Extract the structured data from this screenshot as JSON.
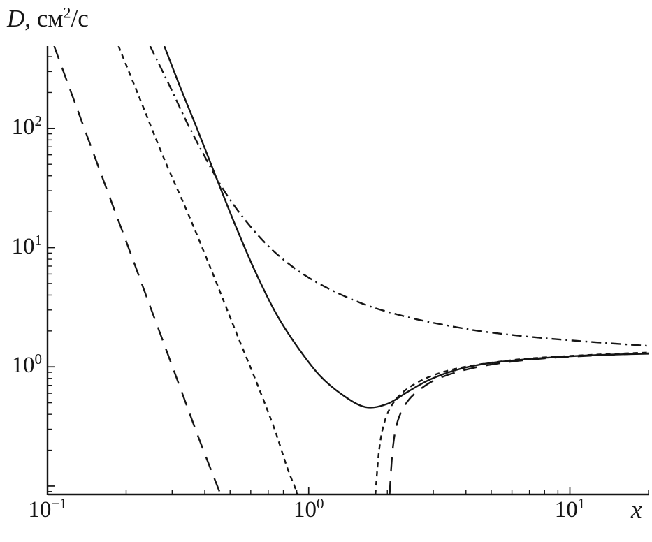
{
  "labels": {
    "y_title": {
      "var": "D",
      "mid": ", см",
      "sup": "2",
      "tail": "/с"
    },
    "x_title": "x"
  },
  "chart_data": {
    "type": "line",
    "title": "",
    "xlabel": "x",
    "ylabel": "D, см2/с",
    "x_scale": "log",
    "y_scale": "log",
    "xlim": [
      0.1,
      20
    ],
    "ylim": [
      0.085,
      490
    ],
    "grid": false,
    "legend": "none",
    "axis_color": "#151515",
    "curve_color": "#151515",
    "x_ticks": [
      {
        "base": "10",
        "exp": "−1",
        "value": 0.1
      },
      {
        "base": "10",
        "exp": "0",
        "value": 1
      },
      {
        "base": "10",
        "exp": "1",
        "value": 10
      }
    ],
    "y_ticks": [
      {
        "base": "10",
        "exp": "0",
        "value": 1
      },
      {
        "base": "10",
        "exp": "1",
        "value": 10
      },
      {
        "base": "10",
        "exp": "2",
        "value": 100
      }
    ],
    "series": [
      {
        "name": "solid-curve",
        "line_style": "solid",
        "dash": [],
        "width": 2.4,
        "branches": [
          [
            [
              0.28,
              490
            ],
            [
              0.32,
              230
            ],
            [
              0.37,
              105
            ],
            [
              0.44,
              40
            ],
            [
              0.52,
              16
            ],
            [
              0.62,
              6.5
            ],
            [
              0.75,
              2.8
            ],
            [
              0.9,
              1.5
            ],
            [
              1.1,
              0.85
            ],
            [
              1.35,
              0.58
            ],
            [
              1.65,
              0.46
            ],
            [
              2.0,
              0.49
            ],
            [
              2.4,
              0.62
            ],
            [
              2.9,
              0.78
            ],
            [
              3.6,
              0.93
            ],
            [
              4.6,
              1.05
            ],
            [
              6,
              1.13
            ],
            [
              8,
              1.19
            ],
            [
              11,
              1.24
            ],
            [
              15,
              1.27
            ],
            [
              20,
              1.29
            ]
          ]
        ]
      },
      {
        "name": "dash-dot-curve",
        "line_style": "dash-dot",
        "dash": [
          14,
          6,
          2.5,
          6
        ],
        "width": 2.4,
        "branches": [
          [
            [
              0.247,
              490
            ],
            [
              0.29,
              240
            ],
            [
              0.34,
              115
            ],
            [
              0.4,
              58
            ],
            [
              0.47,
              31
            ],
            [
              0.56,
              18
            ],
            [
              0.68,
              11
            ],
            [
              0.82,
              7.6
            ],
            [
              1.0,
              5.6
            ],
            [
              1.25,
              4.3
            ],
            [
              1.6,
              3.4
            ],
            [
              2.0,
              2.9
            ],
            [
              2.6,
              2.5
            ],
            [
              3.4,
              2.22
            ],
            [
              4.5,
              2.0
            ],
            [
              6,
              1.85
            ],
            [
              8,
              1.74
            ],
            [
              10,
              1.67
            ],
            [
              14,
              1.58
            ],
            [
              20,
              1.5
            ]
          ]
        ]
      },
      {
        "name": "long-dash-curve",
        "line_style": "long-dash",
        "dash": [
          20,
          13
        ],
        "width": 2.4,
        "branches": [
          [
            [
              0.106,
              490
            ],
            [
              0.13,
              145
            ],
            [
              0.16,
              42
            ],
            [
              0.2,
              11.3
            ],
            [
              0.25,
              3.0
            ],
            [
              0.31,
              0.84
            ],
            [
              0.38,
              0.25
            ],
            [
              0.46,
              0.085
            ]
          ],
          [
            [
              2.04,
              0.085
            ],
            [
              2.1,
              0.21
            ],
            [
              2.2,
              0.36
            ],
            [
              2.4,
              0.52
            ],
            [
              2.7,
              0.66
            ],
            [
              3.1,
              0.79
            ],
            [
              3.8,
              0.92
            ],
            [
              4.8,
              1.03
            ],
            [
              6.5,
              1.13
            ],
            [
              9,
              1.2
            ],
            [
              13,
              1.25
            ],
            [
              20,
              1.3
            ]
          ]
        ]
      },
      {
        "name": "short-dash-curve",
        "line_style": "short-dash",
        "dash": [
          7,
          6
        ],
        "width": 2.4,
        "branches": [
          [
            [
              0.187,
              490
            ],
            [
              0.23,
              160
            ],
            [
              0.28,
              55
            ],
            [
              0.35,
              18
            ],
            [
              0.43,
              6.0
            ],
            [
              0.52,
              2.1
            ],
            [
              0.63,
              0.75
            ],
            [
              0.74,
              0.3
            ],
            [
              0.83,
              0.14
            ],
            [
              0.91,
              0.085
            ]
          ],
          [
            [
              1.8,
              0.085
            ],
            [
              1.86,
              0.2
            ],
            [
              1.94,
              0.33
            ],
            [
              2.06,
              0.46
            ],
            [
              2.25,
              0.59
            ],
            [
              2.55,
              0.72
            ],
            [
              3.0,
              0.85
            ],
            [
              3.7,
              0.97
            ],
            [
              4.8,
              1.07
            ],
            [
              6.5,
              1.16
            ],
            [
              9,
              1.22
            ],
            [
              13,
              1.27
            ],
            [
              20,
              1.32
            ]
          ]
        ]
      }
    ]
  }
}
